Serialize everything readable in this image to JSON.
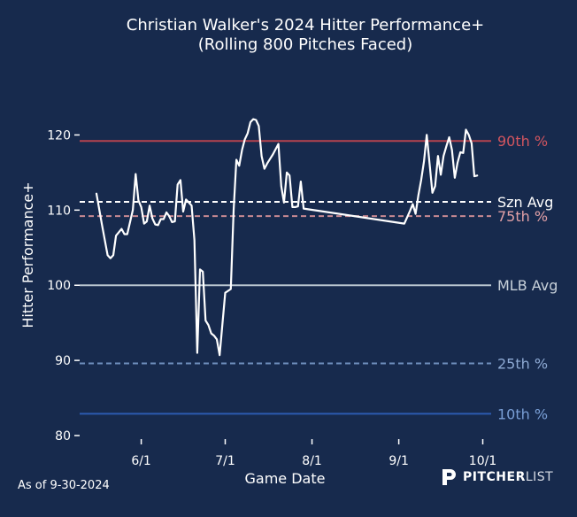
{
  "chart_data": {
    "type": "line",
    "title": "Christian Walker's 2024 Hitter Performance+",
    "subtitle": "(Rolling 800 Pitches Faced)",
    "xlabel": "Game Date",
    "ylabel": "Hitter Performance+",
    "ylim": [
      80,
      125
    ],
    "yticks": [
      80,
      90,
      100,
      110,
      120
    ],
    "xlim": [
      "2024-05-10",
      "2024-10-04"
    ],
    "xticks": [
      {
        "date": "2024-06-01",
        "label": "6/1"
      },
      {
        "date": "2024-07-01",
        "label": "7/1"
      },
      {
        "date": "2024-08-01",
        "label": "8/1"
      },
      {
        "date": "2024-09-01",
        "label": "9/1"
      },
      {
        "date": "2024-10-01",
        "label": "10/1"
      }
    ],
    "reference_lines": [
      {
        "name": "90th %",
        "value": 119.2,
        "color": "#b5434f",
        "label_color": "#d2555f",
        "style": "solid"
      },
      {
        "name": "Szn Avg",
        "value": 111.1,
        "color": "#ffffff",
        "label_color": "#ffffff",
        "style": "dashed"
      },
      {
        "name": "75th %",
        "value": 109.2,
        "color": "#c98a92",
        "label_color": "#e1a0a6",
        "style": "dashed"
      },
      {
        "name": "MLB Avg",
        "value": 100.0,
        "color": "#b8c4cf",
        "label_color": "#c8d1da",
        "style": "solid"
      },
      {
        "name": "25th %",
        "value": 89.6,
        "color": "#6f8fbd",
        "label_color": "#8eaad4",
        "style": "dashed"
      },
      {
        "name": "10th %",
        "value": 82.9,
        "color": "#2d5bb1",
        "label_color": "#7a9fd6",
        "style": "solid"
      }
    ],
    "series": [
      {
        "name": "Christian Walker",
        "color": "#ffffff",
        "points": [
          [
            "2024-05-16",
            112.2
          ],
          [
            "2024-05-18",
            108.0
          ],
          [
            "2024-05-20",
            104.0
          ],
          [
            "2024-05-21",
            103.6
          ],
          [
            "2024-05-22",
            104.0
          ],
          [
            "2024-05-23",
            106.6
          ],
          [
            "2024-05-25",
            107.5
          ],
          [
            "2024-05-26",
            106.8
          ],
          [
            "2024-05-27",
            106.8
          ],
          [
            "2024-05-29",
            110.0
          ],
          [
            "2024-05-30",
            114.8
          ],
          [
            "2024-05-31",
            111.3
          ],
          [
            "2024-06-01",
            110.4
          ],
          [
            "2024-06-02",
            108.2
          ],
          [
            "2024-06-03",
            108.5
          ],
          [
            "2024-06-04",
            110.6
          ],
          [
            "2024-06-05",
            108.9
          ],
          [
            "2024-06-06",
            108.1
          ],
          [
            "2024-06-07",
            108.0
          ],
          [
            "2024-06-08",
            108.8
          ],
          [
            "2024-06-09",
            108.8
          ],
          [
            "2024-06-10",
            109.7
          ],
          [
            "2024-06-11",
            109.2
          ],
          [
            "2024-06-12",
            108.4
          ],
          [
            "2024-06-13",
            108.5
          ],
          [
            "2024-06-14",
            113.4
          ],
          [
            "2024-06-15",
            114.0
          ],
          [
            "2024-06-16",
            109.8
          ],
          [
            "2024-06-17",
            111.4
          ],
          [
            "2024-06-18",
            111.0
          ],
          [
            "2024-06-19",
            110.6
          ],
          [
            "2024-06-20",
            106.0
          ],
          [
            "2024-06-21",
            91.0
          ],
          [
            "2024-06-22",
            102.1
          ],
          [
            "2024-06-23",
            101.8
          ],
          [
            "2024-06-24",
            95.3
          ],
          [
            "2024-06-25",
            94.7
          ],
          [
            "2024-06-26",
            93.6
          ],
          [
            "2024-06-27",
            93.3
          ],
          [
            "2024-06-28",
            92.8
          ],
          [
            "2024-06-29",
            90.7
          ],
          [
            "2024-06-30",
            94.8
          ],
          [
            "2024-07-01",
            99.0
          ],
          [
            "2024-07-03",
            99.5
          ],
          [
            "2024-07-04",
            110.0
          ],
          [
            "2024-07-05",
            116.7
          ],
          [
            "2024-07-06",
            115.9
          ],
          [
            "2024-07-07",
            118.0
          ],
          [
            "2024-07-08",
            119.4
          ],
          [
            "2024-07-09",
            120.2
          ],
          [
            "2024-07-10",
            121.7
          ],
          [
            "2024-07-11",
            122.1
          ],
          [
            "2024-07-12",
            122.0
          ],
          [
            "2024-07-13",
            121.2
          ],
          [
            "2024-07-14",
            117.2
          ],
          [
            "2024-07-15",
            115.5
          ],
          [
            "2024-07-16",
            116.2
          ],
          [
            "2024-07-17",
            116.8
          ],
          [
            "2024-07-18",
            117.4
          ],
          [
            "2024-07-19",
            118.1
          ],
          [
            "2024-07-20",
            118.8
          ],
          [
            "2024-07-21",
            113.2
          ],
          [
            "2024-07-22",
            111.0
          ],
          [
            "2024-07-23",
            115.0
          ],
          [
            "2024-07-24",
            114.6
          ],
          [
            "2024-07-25",
            110.4
          ],
          [
            "2024-07-26",
            110.4
          ],
          [
            "2024-07-27",
            110.5
          ],
          [
            "2024-07-28",
            113.8
          ],
          [
            "2024-07-29",
            110.2
          ],
          [
            "2024-09-03",
            108.2
          ],
          [
            "2024-09-05",
            109.9
          ],
          [
            "2024-09-06",
            110.8
          ],
          [
            "2024-09-07",
            109.5
          ],
          [
            "2024-09-08",
            112.0
          ],
          [
            "2024-09-09",
            114.0
          ],
          [
            "2024-09-10",
            116.5
          ],
          [
            "2024-09-11",
            120.0
          ],
          [
            "2024-09-12",
            116.2
          ],
          [
            "2024-09-13",
            112.3
          ],
          [
            "2024-09-14",
            113.2
          ],
          [
            "2024-09-15",
            117.2
          ],
          [
            "2024-09-16",
            114.7
          ],
          [
            "2024-09-17",
            117.2
          ],
          [
            "2024-09-18",
            118.5
          ],
          [
            "2024-09-19",
            119.7
          ],
          [
            "2024-09-20",
            118.0
          ],
          [
            "2024-09-21",
            114.3
          ],
          [
            "2024-09-22",
            116.3
          ],
          [
            "2024-09-23",
            117.7
          ],
          [
            "2024-09-24",
            117.6
          ],
          [
            "2024-09-25",
            120.7
          ],
          [
            "2024-09-26",
            120.0
          ],
          [
            "2024-09-27",
            118.9
          ],
          [
            "2024-09-28",
            114.5
          ],
          [
            "2024-09-29",
            114.6
          ]
        ]
      }
    ]
  },
  "footer": {
    "as_of": "As of 9-30-2024",
    "brand_bold": "PITCHER",
    "brand_light": "LIST"
  },
  "colors": {
    "background": "#172a4d",
    "text": "#ffffff"
  }
}
